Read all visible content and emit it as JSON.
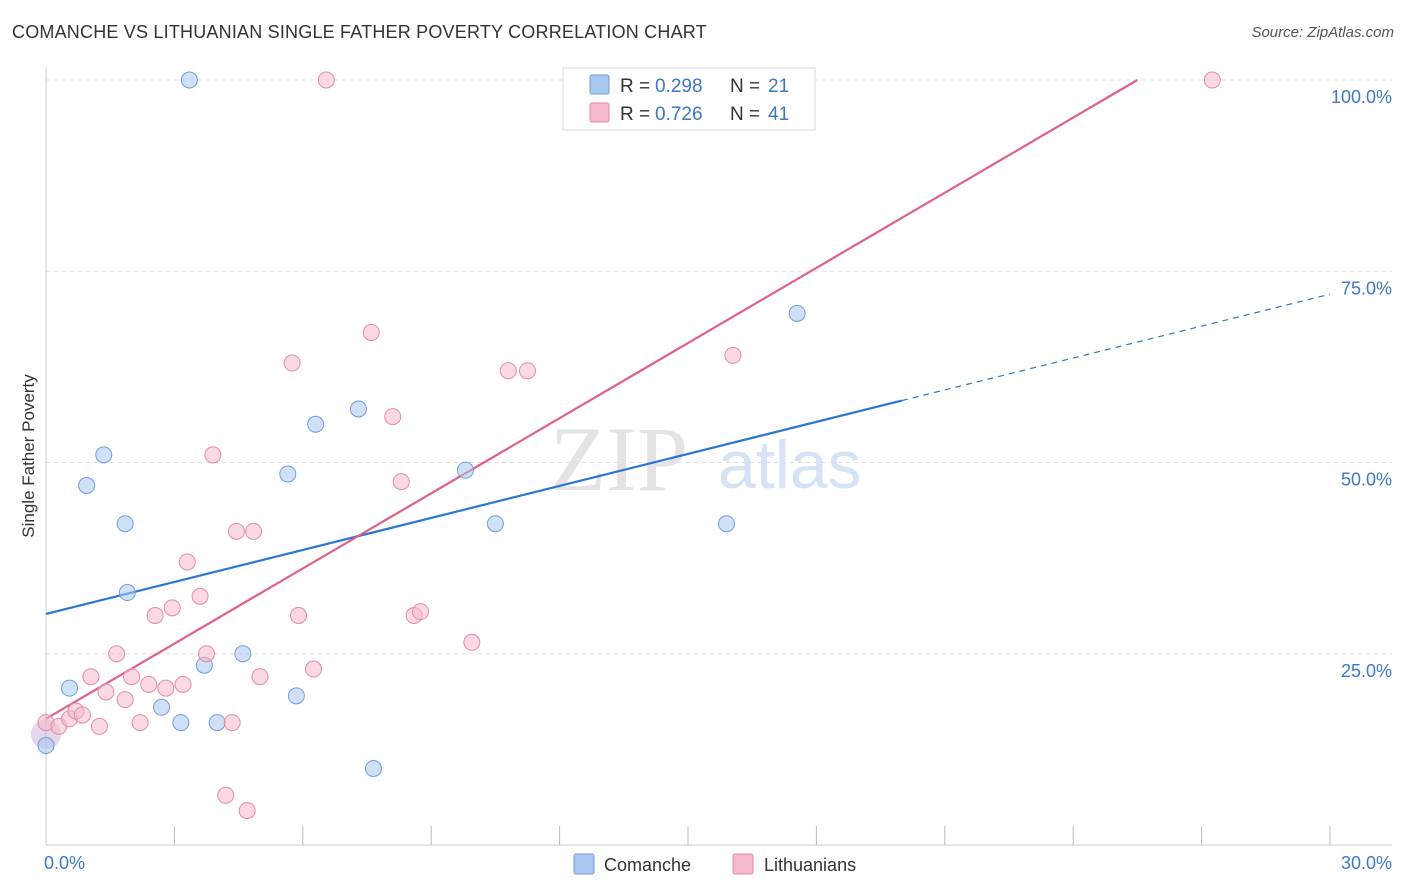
{
  "title": "COMANCHE VS LITHUANIAN SINGLE FATHER POVERTY CORRELATION CHART",
  "source": "Source: ZipAtlas.com",
  "watermark": {
    "zip": "ZIP",
    "atlas": "atlas"
  },
  "legend_top": [
    {
      "r_label": "R = ",
      "r_value": "0.298",
      "n_label": "N = ",
      "n_value": "21",
      "color": "#a9c8f0",
      "border": "#6f9ed8"
    },
    {
      "r_label": "R = ",
      "r_value": "0.726",
      "n_label": "N = ",
      "n_value": "41",
      "color": "#f6b9cb",
      "border": "#e48aa6"
    }
  ],
  "legend_bottom": [
    {
      "label": "Comanche",
      "color": "#a9c8f0"
    },
    {
      "label": "Lithuanians",
      "color": "#f6b9cb"
    }
  ],
  "colors": {
    "comanche_fill": "#a9c8f0",
    "comanche_stroke": "#6f9ed8",
    "comanche_line": "#2f76d2",
    "lith_fill": "#f6b9cb",
    "lith_stroke": "#e48aa6",
    "lith_line": "#e0608a",
    "axis_text": "#3d78c6",
    "grid": "#dddddd"
  },
  "chart_data": {
    "type": "scatter",
    "xlabel": "",
    "ylabel": "Single Father Poverty",
    "xlim": [
      0,
      30
    ],
    "ylim": [
      0,
      100
    ],
    "x_tick_labels": [
      "0.0%",
      "30.0%"
    ],
    "y_tick_labels": [
      "25.0%",
      "50.0%",
      "75.0%",
      "100.0%"
    ],
    "y_ticks": [
      25,
      50,
      75,
      100
    ],
    "grid": true,
    "series": [
      {
        "name": "Comanche",
        "points": [
          [
            0.0,
            13.0
          ],
          [
            0.55,
            20.5
          ],
          [
            0.95,
            47.0
          ],
          [
            1.35,
            51.0
          ],
          [
            1.85,
            42.0
          ],
          [
            1.9,
            33.0
          ],
          [
            2.7,
            18.0
          ],
          [
            3.15,
            16.0
          ],
          [
            3.35,
            100.0
          ],
          [
            3.7,
            23.5
          ],
          [
            4.0,
            16.0
          ],
          [
            4.6,
            25.0
          ],
          [
            5.65,
            48.5
          ],
          [
            5.85,
            19.5
          ],
          [
            6.3,
            55.0
          ],
          [
            7.3,
            57.0
          ],
          [
            7.65,
            10.0
          ],
          [
            9.8,
            49.0
          ],
          [
            10.5,
            42.0
          ],
          [
            15.9,
            42.0
          ],
          [
            17.55,
            69.5
          ]
        ],
        "trend": {
          "x0": 0,
          "y0": 30.2,
          "x1": 20.0,
          "y1": 58.1,
          "dashed_to_x": 30.0,
          "dashed_to_y": 72.0
        }
      },
      {
        "name": "Lithuanians",
        "points": [
          [
            0.0,
            16.0
          ],
          [
            0.3,
            15.5
          ],
          [
            0.55,
            16.5
          ],
          [
            0.7,
            17.5
          ],
          [
            0.85,
            17.0
          ],
          [
            1.05,
            22.0
          ],
          [
            1.25,
            15.5
          ],
          [
            1.4,
            20.0
          ],
          [
            1.65,
            25.0
          ],
          [
            1.85,
            19.0
          ],
          [
            2.0,
            22.0
          ],
          [
            2.2,
            16.0
          ],
          [
            2.4,
            21.0
          ],
          [
            2.55,
            30.0
          ],
          [
            2.8,
            20.5
          ],
          [
            2.95,
            31.0
          ],
          [
            3.2,
            21.0
          ],
          [
            3.3,
            37.0
          ],
          [
            3.6,
            32.5
          ],
          [
            3.75,
            25.0
          ],
          [
            3.9,
            51.0
          ],
          [
            4.2,
            6.5
          ],
          [
            4.35,
            16.0
          ],
          [
            4.45,
            41.0
          ],
          [
            4.7,
            4.5
          ],
          [
            4.85,
            41.0
          ],
          [
            5.0,
            22.0
          ],
          [
            5.75,
            63.0
          ],
          [
            5.9,
            30.0
          ],
          [
            6.25,
            23.0
          ],
          [
            6.55,
            100.0
          ],
          [
            7.6,
            67.0
          ],
          [
            8.1,
            56.0
          ],
          [
            8.3,
            47.5
          ],
          [
            8.6,
            30.0
          ],
          [
            8.75,
            30.5
          ],
          [
            9.95,
            26.5
          ],
          [
            10.8,
            62.0
          ],
          [
            11.25,
            62.0
          ],
          [
            16.05,
            64.0
          ],
          [
            27.25,
            100.0
          ]
        ],
        "trend": {
          "x0": 0,
          "y0": 16.5,
          "x1": 25.5,
          "y1": 100.0
        }
      }
    ]
  }
}
